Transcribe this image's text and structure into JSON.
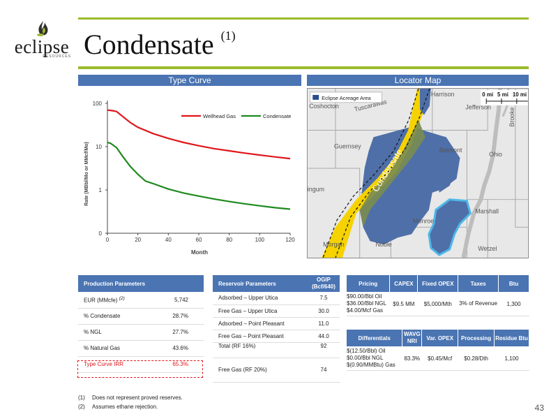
{
  "logo": {
    "word": "eclipse",
    "sub": "RESOURCES"
  },
  "title": {
    "text": "Condensate",
    "sup": "(1)"
  },
  "sections": {
    "type_curve": "Type Curve",
    "locator_map": "Locator Map"
  },
  "chart_data": {
    "type": "line",
    "xlabel": "Month",
    "ylabel": "Rate (MBbl/Mo or MMcf/Mo)",
    "xlim": [
      0,
      120
    ],
    "x_ticks": [
      "0",
      "20",
      "40",
      "60",
      "80",
      "100",
      "120"
    ],
    "y_ticks": [
      "0",
      "1",
      "10",
      "100"
    ],
    "y_scale": "log",
    "legend_placement": "top-right",
    "series": [
      {
        "name": "Wellhead Gas",
        "color": "#e0161c",
        "x": [
          0,
          3,
          6,
          10,
          15,
          20,
          30,
          40,
          50,
          60,
          70,
          80,
          90,
          100,
          110,
          120
        ],
        "values": [
          70,
          68,
          65,
          50,
          36,
          28,
          20,
          15.5,
          12.5,
          10.5,
          9,
          8,
          7.1,
          6.4,
          5.8,
          5.3
        ]
      },
      {
        "name": "Condensate",
        "color": "#1e8a1e",
        "x": [
          0,
          2,
          6,
          10,
          15,
          20,
          25,
          30,
          40,
          50,
          60,
          70,
          80,
          90,
          100,
          110,
          120
        ],
        "values": [
          12.5,
          12,
          9.5,
          6,
          3.5,
          2.3,
          1.6,
          1.4,
          1.05,
          0.85,
          0.72,
          0.62,
          0.54,
          0.48,
          0.43,
          0.39,
          0.36
        ]
      }
    ]
  },
  "map": {
    "legend": "Eclipse Acreage Area",
    "scale_labels": [
      "0 mi",
      "5 mi",
      "10 mi"
    ],
    "counties": [
      "Harrison",
      "Coshocton",
      "Tuscarawas",
      "Jefferson",
      "Brooke",
      "Guernsey",
      "Belmont",
      "Ohio",
      "Muskingum",
      "Marshall",
      "Monroe",
      "Morgan",
      "Noble",
      "Wetzel"
    ],
    "window_label": "Condensate",
    "colors": {
      "acreage": "#4f6fa8",
      "condensate": "#f5d200",
      "river": "#4db8e8"
    }
  },
  "production": {
    "header": "Production Parameters",
    "rows": [
      {
        "label": "EUR (MMcfe)",
        "sup": "(2)",
        "value": "5,742"
      },
      {
        "label": "% Condensate",
        "value": "28.7%"
      },
      {
        "label": "% NGL",
        "value": "27.7%"
      },
      {
        "label": "% Natural Gas",
        "value": "43.6%"
      },
      {
        "label": "Type Curve IRR",
        "value": "65.3%"
      }
    ]
  },
  "reservoir": {
    "header": "Reservoir Parameters",
    "ogip_header": "OGIP (Bcf/640)",
    "rows": [
      {
        "label": "Adsorbed – Upper Utica",
        "value": "7.5"
      },
      {
        "label": "Free Gas – Upper Utica",
        "value": "30.0"
      },
      {
        "label": "Adsorbed – Point Pleasant",
        "value": "11.0"
      },
      {
        "label": "Free Gas – Point Pleasant",
        "value": "44.0"
      },
      {
        "label": "Total (RF 16%)",
        "value": "92"
      },
      {
        "label": "Free Gas (RF 20%)",
        "value": "74"
      }
    ]
  },
  "costs": {
    "headers": [
      "Pricing",
      "CAPEX",
      "Fixed OPEX",
      "Taxes",
      "Btu"
    ],
    "row": {
      "pricing": [
        "$90.00/Bbl Oil",
        "$36.00/Bbl NGL",
        "$4.00/Mcf Gas"
      ],
      "capex": "$9.5 MM",
      "fixed_opex": "$5,000/Mth",
      "taxes": "3% of Revenue",
      "btu": "1,300"
    }
  },
  "differentials": {
    "headers": [
      "Differentials",
      "WAVG NRI",
      "Var. OPEX",
      "Processing",
      "Residue Btu"
    ],
    "row": {
      "diff": [
        "$(12.50/Bbl) Oil",
        "$0.00/Bbl NGL",
        "$(0.90/MMBtu) Gas"
      ],
      "nri": "83.3%",
      "var_opex": "$0.45/Mcf",
      "processing": "$0.28/Dth",
      "residue_btu": "1,100"
    }
  },
  "notes": [
    {
      "num": "(1)",
      "text": "Does not represent proved reserves."
    },
    {
      "num": "(2)",
      "text": "Assumes ethane rejection."
    }
  ],
  "page_number": "43"
}
